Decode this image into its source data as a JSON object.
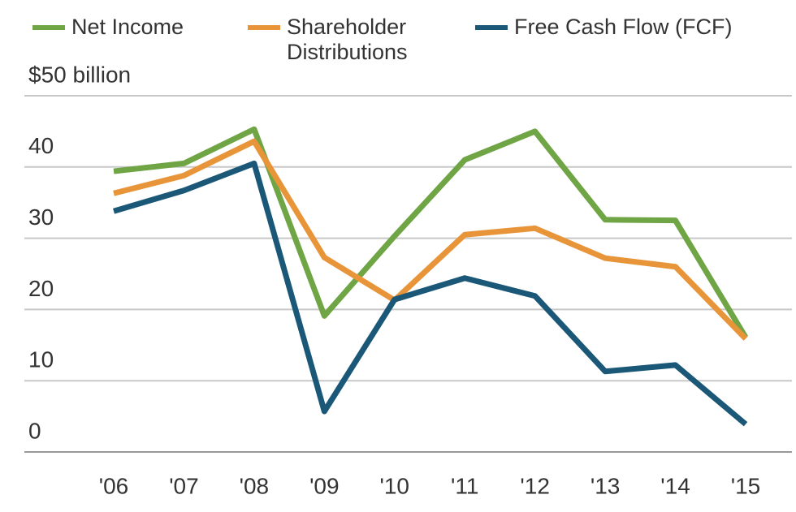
{
  "chart_data": {
    "type": "line",
    "categories": [
      "'06",
      "'07",
      "'08",
      "'09",
      "'10",
      "'11",
      "'12",
      "'13",
      "'14",
      "'15"
    ],
    "series": [
      {
        "name": "Net Income",
        "color": "#6fa545",
        "values": [
          39.4,
          40.5,
          45.3,
          19.1,
          30.3,
          41,
          45,
          32.6,
          32.5,
          16.1
        ]
      },
      {
        "name": "Shareholder Distributions",
        "color": "#e8953a",
        "values": [
          36.3,
          38.8,
          43.6,
          27.3,
          21.3,
          30.5,
          31.4,
          27.2,
          26,
          15.9
        ]
      },
      {
        "name": "Free Cash Flow (FCF)",
        "color": "#1b5878",
        "values": [
          33.8,
          36.7,
          40.5,
          5.7,
          21.4,
          24.4,
          21.9,
          11.3,
          12.2,
          3.9
        ]
      }
    ],
    "ylim": [
      0,
      50
    ],
    "yticks": [
      0,
      10,
      20,
      30,
      40,
      {
        "value": 50,
        "label": "$50 billion"
      }
    ],
    "grid": true
  }
}
